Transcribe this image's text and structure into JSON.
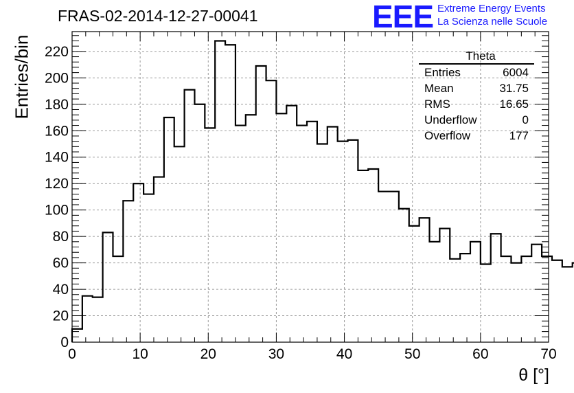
{
  "run_title": "FRAS-02-2014-12-27-00041",
  "logo": {
    "text": "EEE",
    "line1": "Extreme Energy Events",
    "line2": "La Scienza nelle Scuole",
    "color": "#1a1aff"
  },
  "stats": {
    "title": "Theta",
    "rows": [
      {
        "name": "Entries",
        "value": "6004"
      },
      {
        "name": "Mean",
        "value": "31.75"
      },
      {
        "name": "RMS",
        "value": "16.65"
      },
      {
        "name": "Underflow",
        "value": "0"
      },
      {
        "name": "Overflow",
        "value": "177"
      }
    ]
  },
  "chart_data": {
    "type": "bar",
    "histogram": "step",
    "xlabel": "θ [°]",
    "ylabel": "Entries/bin",
    "xlim": [
      0,
      70
    ],
    "ylim": [
      0,
      235
    ],
    "bin_width": 1.5,
    "grid": true,
    "x_ticks": [
      0,
      10,
      20,
      30,
      40,
      50,
      60,
      70
    ],
    "y_ticks": [
      0,
      20,
      40,
      60,
      80,
      100,
      120,
      140,
      160,
      180,
      200,
      220
    ],
    "values": [
      10,
      35,
      34,
      83,
      65,
      107,
      120,
      112,
      125,
      170,
      148,
      191,
      180,
      162,
      228,
      225,
      164,
      172,
      209,
      198,
      173,
      179,
      164,
      167,
      150,
      163,
      152,
      153,
      130,
      131,
      114,
      114,
      101,
      88,
      94,
      76,
      86,
      63,
      67,
      76,
      59,
      82,
      65,
      60,
      65,
      74,
      65,
      62,
      57,
      60
    ]
  }
}
